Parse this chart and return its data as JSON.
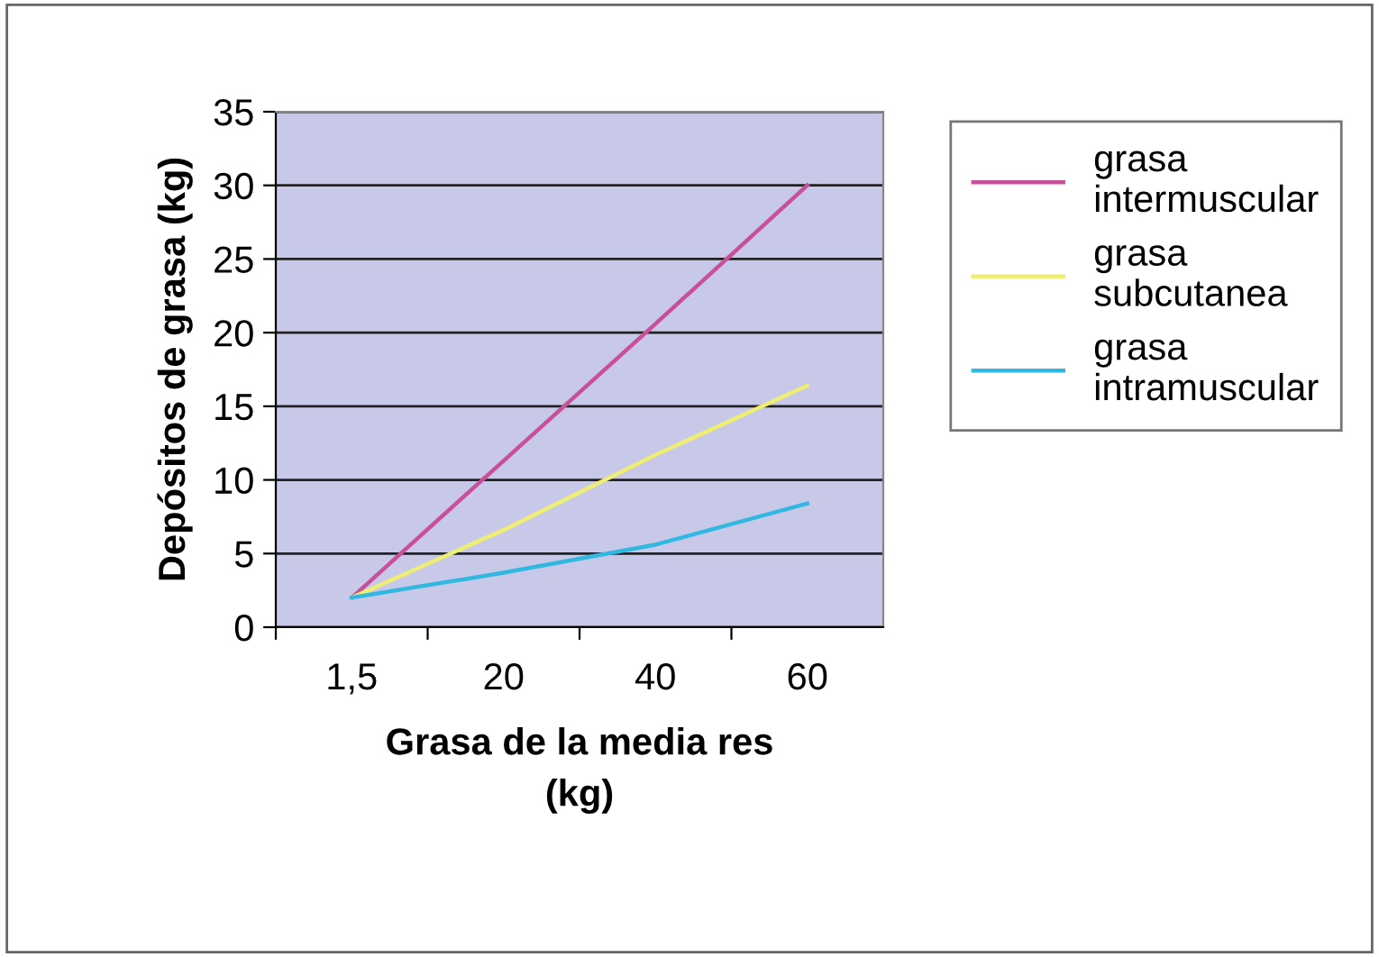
{
  "chart_data": {
    "type": "line",
    "xlabel": "Grasa de la media res\n(kg)",
    "ylabel": "Depósitos de grasa (kg)",
    "categories": [
      "1,5",
      "20",
      "40",
      "60"
    ],
    "series": [
      {
        "name": "grasa\nintermuscular",
        "color": "#c8509a",
        "values": [
          2,
          11.3,
          20.6,
          30
        ]
      },
      {
        "name": "grasa\nsubcutanea",
        "color": "#eeee70",
        "values": [
          2,
          6.6,
          11.7,
          16.4
        ]
      },
      {
        "name": "grasa\nintramuscular",
        "color": "#30b8e0",
        "values": [
          2,
          3.7,
          5.6,
          8.4
        ]
      }
    ],
    "ylim": [
      0,
      35
    ],
    "yticks": [
      0,
      5,
      10,
      15,
      20,
      25,
      30,
      35
    ],
    "grid": "y",
    "legend": "right",
    "marker": "none",
    "line_style": "solid"
  }
}
